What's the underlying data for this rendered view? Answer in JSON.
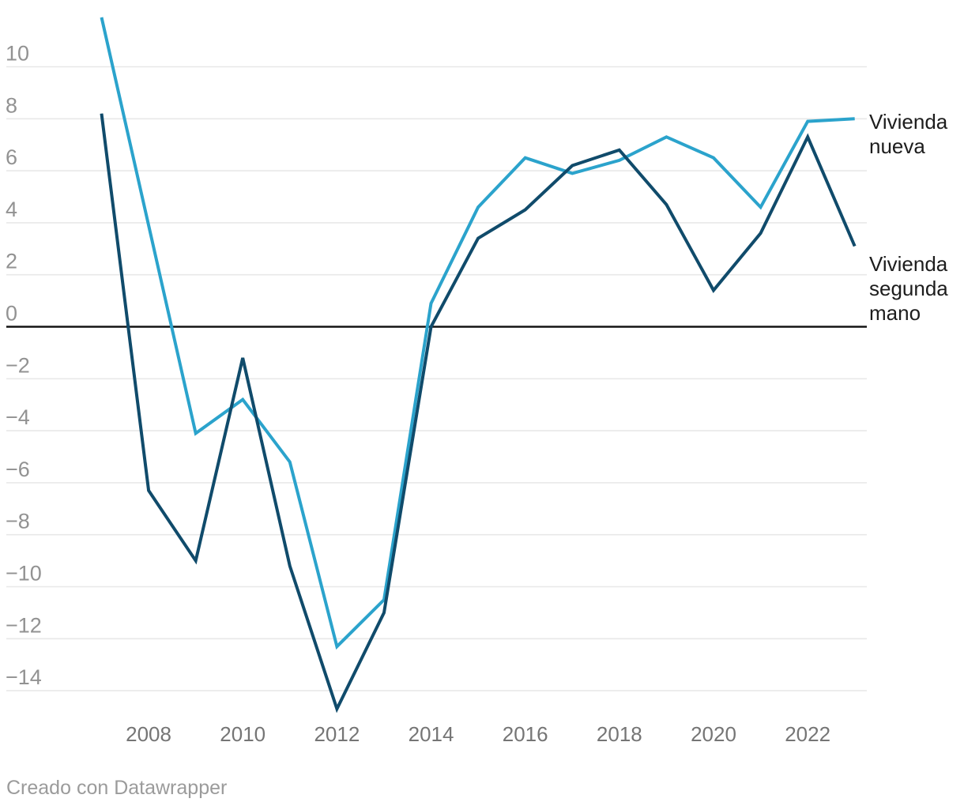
{
  "chart_data": {
    "type": "line",
    "x": [
      2007,
      2008,
      2009,
      2010,
      2011,
      2012,
      2013,
      2014,
      2015,
      2016,
      2017,
      2018,
      2019,
      2020,
      2021,
      2022,
      2023
    ],
    "series": [
      {
        "name": "Vivienda nueva",
        "color": "#2ba3cc",
        "values": [
          11.9,
          3.9,
          -4.1,
          -2.8,
          -5.2,
          -12.3,
          -10.5,
          0.9,
          4.6,
          6.5,
          5.9,
          6.4,
          7.3,
          6.5,
          4.6,
          7.9,
          8.0
        ]
      },
      {
        "name": "Vivienda segunda mano",
        "color": "#104b6b",
        "values": [
          8.2,
          -6.3,
          -9.0,
          -1.2,
          -9.2,
          -14.7,
          -11.0,
          0.0,
          3.4,
          4.5,
          6.2,
          6.8,
          4.7,
          1.4,
          3.6,
          7.3,
          3.1
        ]
      }
    ],
    "ylim": [
      -15.3,
      12.1
    ],
    "y_ticks": [
      10,
      8,
      6,
      4,
      2,
      0,
      -2,
      -4,
      -6,
      -8,
      -10,
      -12,
      -14
    ],
    "y_tick_labels": [
      "10",
      "8",
      "6",
      "4",
      "2",
      "0",
      "−2",
      "−4",
      "−6",
      "−8",
      "−10",
      "−12",
      "−14"
    ],
    "x_ticks": [
      2008,
      2010,
      2012,
      2014,
      2016,
      2018,
      2020,
      2022
    ],
    "x_tick_labels": [
      "2008",
      "2010",
      "2012",
      "2014",
      "2016",
      "2018",
      "2020",
      "2022"
    ],
    "grid": true,
    "zero_baseline": true,
    "legend_position": "right-of-line-ends"
  },
  "legend": {
    "series1_label": "Vivienda nueva",
    "series2_label": "Vivienda segunda mano"
  },
  "footer": {
    "credit": "Creado con Datawrapper"
  },
  "colors": {
    "series1": "#2ba3cc",
    "series2": "#104b6b",
    "gridline": "#e8e8e8",
    "zero_line": "#141414",
    "y_tick_text": "#929292",
    "x_tick_text": "#757575",
    "legend_text": "#1d1d1d",
    "footer_text": "#9b9b9b",
    "background": "#ffffff"
  }
}
